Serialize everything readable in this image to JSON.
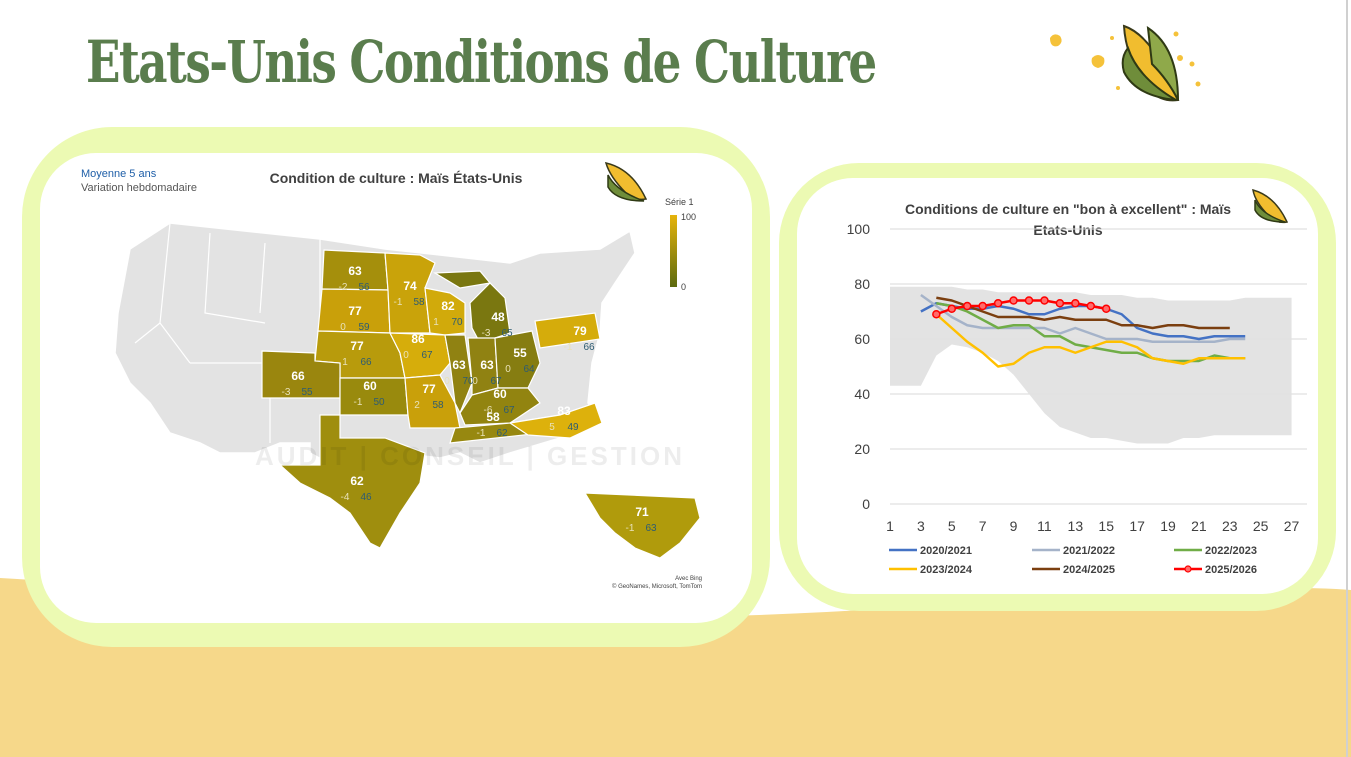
{
  "page": {
    "title": "Etats-Unis   Conditions de Culture",
    "colors": {
      "title": "#5a7d4d",
      "panel_border": "#ecfab3",
      "wave": "#f6d88a"
    },
    "decor_icons": [
      "corn-icon",
      "corn-kernel-icon"
    ]
  },
  "map_panel": {
    "title": "Condition de culture : Maïs États-Unis",
    "legend_line1": "Moyenne 5 ans",
    "legend_line2": "Variation hebdomadaire",
    "scale_title": "Série 1",
    "scale_max": "100",
    "scale_min": "0",
    "credit_line1": "Avec Bing",
    "credit_line2": "© GeoNames, Microsoft, TomTom",
    "watermark": "AUDIT | CONSEIL | GESTION",
    "states": [
      {
        "code": "ND",
        "value": "63",
        "change": "-2",
        "avg": "56"
      },
      {
        "code": "MN",
        "value": "74",
        "change": "-1",
        "avg": "58"
      },
      {
        "code": "SD",
        "value": "77",
        "change": "0",
        "avg": "59"
      },
      {
        "code": "WI",
        "value": "82",
        "change": "1",
        "avg": "70"
      },
      {
        "code": "MI",
        "value": "48",
        "change": "-3",
        "avg": "65"
      },
      {
        "code": "NE",
        "value": "77",
        "change": "1",
        "avg": "66"
      },
      {
        "code": "IA",
        "value": "86",
        "change": "0",
        "avg": "67"
      },
      {
        "code": "PA",
        "value": "79",
        "change": "-1",
        "avg": "66"
      },
      {
        "code": "CO",
        "value": "66",
        "change": "-3",
        "avg": "55"
      },
      {
        "code": "KS",
        "value": "60",
        "change": "-1",
        "avg": "50"
      },
      {
        "code": "IL",
        "value": "63",
        "change": "0",
        "avg": "70"
      },
      {
        "code": "IN",
        "value": "63",
        "change": "0",
        "avg": "67"
      },
      {
        "code": "OH",
        "value": "55",
        "change": "0",
        "avg": "64"
      },
      {
        "code": "MO",
        "value": "77",
        "change": "2",
        "avg": "58"
      },
      {
        "code": "KY",
        "value": "60",
        "change": "-6",
        "avg": "67"
      },
      {
        "code": "TN",
        "value": "58",
        "change": "-1",
        "avg": "62"
      },
      {
        "code": "NC",
        "value": "83",
        "change": "5",
        "avg": "49"
      },
      {
        "code": "TX",
        "value": "62",
        "change": "-4",
        "avg": "46"
      },
      {
        "code": "FL",
        "value": "71",
        "change": "-1",
        "avg": "63"
      }
    ]
  },
  "line_panel": {
    "title_line1": "Conditions de culture en \"bon à excellent\" : Maïs",
    "title_line2": "Etats-Unis"
  },
  "chart_data": {
    "type": "line",
    "title": "Conditions de culture en \"bon à excellent\" : Maïs Etats-Unis",
    "xlabel": "",
    "ylabel": "",
    "xlim": [
      1,
      28
    ],
    "ylim": [
      0,
      100
    ],
    "x_ticks": [
      1,
      3,
      5,
      7,
      9,
      11,
      13,
      15,
      17,
      19,
      21,
      23,
      25,
      27
    ],
    "y_ticks": [
      0,
      20,
      40,
      60,
      80,
      100
    ],
    "grid": "horizontal",
    "legend_position": "bottom",
    "range_band": {
      "x": [
        1,
        3,
        4,
        5,
        6,
        7,
        8,
        9,
        10,
        11,
        12,
        13,
        14,
        15,
        16,
        17,
        18,
        19,
        20,
        21,
        22,
        23,
        24,
        25,
        26,
        27
      ],
      "upper": [
        79,
        79,
        79,
        79,
        78,
        78,
        77,
        77,
        77,
        77,
        77,
        77,
        76,
        76,
        76,
        75,
        75,
        74,
        74,
        74,
        74,
        74,
        75,
        75,
        75,
        75
      ],
      "lower": [
        43,
        43,
        54,
        58,
        57,
        55,
        52,
        47,
        40,
        33,
        28,
        26,
        24,
        24,
        23,
        22,
        22,
        22,
        24,
        24,
        25,
        25,
        25,
        25,
        25,
        25
      ],
      "color": "#e0e0e0"
    },
    "series": [
      {
        "name": "2020/2021",
        "color": "#4472c4",
        "marker": false,
        "x": [
          3,
          4,
          5,
          6,
          7,
          8,
          9,
          10,
          11,
          12,
          13,
          14,
          15,
          16,
          17,
          18,
          19,
          20,
          21,
          22,
          23,
          24
        ],
        "values": [
          70,
          73,
          72,
          71,
          71,
          72,
          71,
          69,
          69,
          71,
          72,
          72,
          71,
          69,
          64,
          62,
          61,
          61,
          60,
          61,
          61,
          61
        ]
      },
      {
        "name": "2021/2022",
        "color": "#a5b3c9",
        "marker": false,
        "x": [
          3,
          4,
          5,
          6,
          7,
          8,
          9,
          10,
          11,
          12,
          13,
          14,
          15,
          16,
          17,
          18,
          19,
          20,
          21,
          22,
          23,
          24
        ],
        "values": [
          76,
          72,
          68,
          65,
          64,
          64,
          64,
          64,
          64,
          62,
          64,
          62,
          60,
          60,
          60,
          59,
          59,
          59,
          59,
          59,
          60,
          60
        ]
      },
      {
        "name": "2022/2023",
        "color": "#70ad47",
        "marker": false,
        "x": [
          4,
          5,
          6,
          7,
          8,
          9,
          10,
          11,
          12,
          13,
          14,
          15,
          16,
          17,
          18,
          19,
          20,
          21,
          22,
          23,
          24
        ],
        "values": [
          73,
          72,
          70,
          67,
          64,
          65,
          65,
          61,
          61,
          58,
          57,
          56,
          55,
          55,
          53,
          52,
          52,
          52,
          54,
          53,
          53
        ]
      },
      {
        "name": "2023/2024",
        "color": "#ffc000",
        "marker": false,
        "x": [
          4,
          5,
          6,
          7,
          8,
          9,
          10,
          11,
          12,
          13,
          14,
          15,
          16,
          17,
          18,
          19,
          20,
          21,
          22,
          23,
          24
        ],
        "values": [
          69,
          64,
          59,
          55,
          50,
          51,
          55,
          57,
          57,
          55,
          57,
          59,
          59,
          57,
          53,
          52,
          51,
          53,
          53,
          53,
          53
        ]
      },
      {
        "name": "2024/2025",
        "color": "#7b3f10",
        "marker": false,
        "x": [
          4,
          5,
          6,
          7,
          8,
          9,
          10,
          11,
          12,
          13,
          14,
          15,
          16,
          17,
          18,
          19,
          20,
          21,
          22,
          23
        ],
        "values": [
          75,
          74,
          72,
          70,
          68,
          68,
          68,
          67,
          68,
          67,
          67,
          67,
          65,
          65,
          64,
          65,
          65,
          64,
          64,
          64
        ]
      },
      {
        "name": "2025/2026",
        "color": "#ff0000",
        "marker": true,
        "x": [
          4,
          5,
          6,
          7,
          8,
          9,
          10,
          11,
          12,
          13,
          14,
          15
        ],
        "values": [
          69,
          71,
          72,
          72,
          73,
          74,
          74,
          74,
          73,
          73,
          72,
          71
        ]
      }
    ]
  }
}
